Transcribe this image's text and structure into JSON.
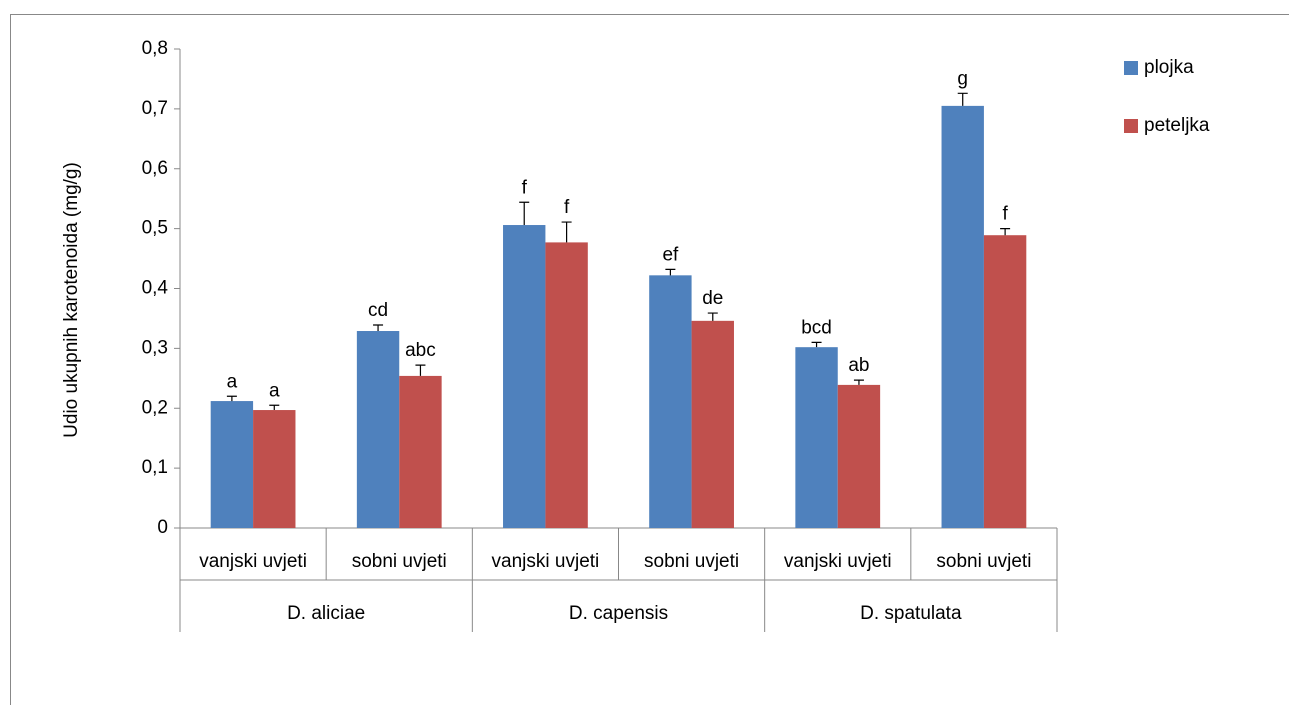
{
  "chart_data": {
    "type": "bar",
    "y_label": "Udio ukupnih karotenoida (mg/g)",
    "categories": [
      "vanjski uvjeti",
      "sobni uvjeti",
      "vanjski uvjeti",
      "sobni uvjeti",
      "vanjski uvjeti",
      "sobni uvjeti"
    ],
    "groups": [
      "D. aliciae",
      "D. capensis",
      "D. spatulata"
    ],
    "series": [
      {
        "name": "plojka",
        "color": "#4f81bd",
        "values": [
          0.212,
          0.329,
          0.506,
          0.422,
          0.302,
          0.705
        ],
        "errors": [
          0.008,
          0.01,
          0.038,
          0.01,
          0.008,
          0.021
        ],
        "labels": [
          "a",
          "cd",
          "f",
          "ef",
          "bcd",
          "g"
        ]
      },
      {
        "name": "peteljka",
        "color": "#c0504d",
        "values": [
          0.197,
          0.254,
          0.477,
          0.346,
          0.239,
          0.489
        ],
        "errors": [
          0.008,
          0.018,
          0.034,
          0.013,
          0.008,
          0.011
        ],
        "labels": [
          "a",
          "abc",
          "f",
          "de",
          "ab",
          "f"
        ]
      }
    ],
    "ylim": [
      0,
      0.8
    ],
    "yticks": [
      0,
      {
        "value": 0.1,
        "label": "0,1"
      },
      {
        "value": 0.2,
        "label": "0,2"
      },
      {
        "value": 0.3,
        "label": "0,3"
      },
      {
        "value": 0.4,
        "label": "0,4"
      },
      {
        "value": 0.5,
        "label": "0,5"
      },
      {
        "value": 0.6,
        "label": "0,6"
      },
      {
        "value": 0.7,
        "label": "0,7"
      },
      {
        "value": 0.8,
        "label": "0,8"
      }
    ],
    "legend": "right"
  }
}
